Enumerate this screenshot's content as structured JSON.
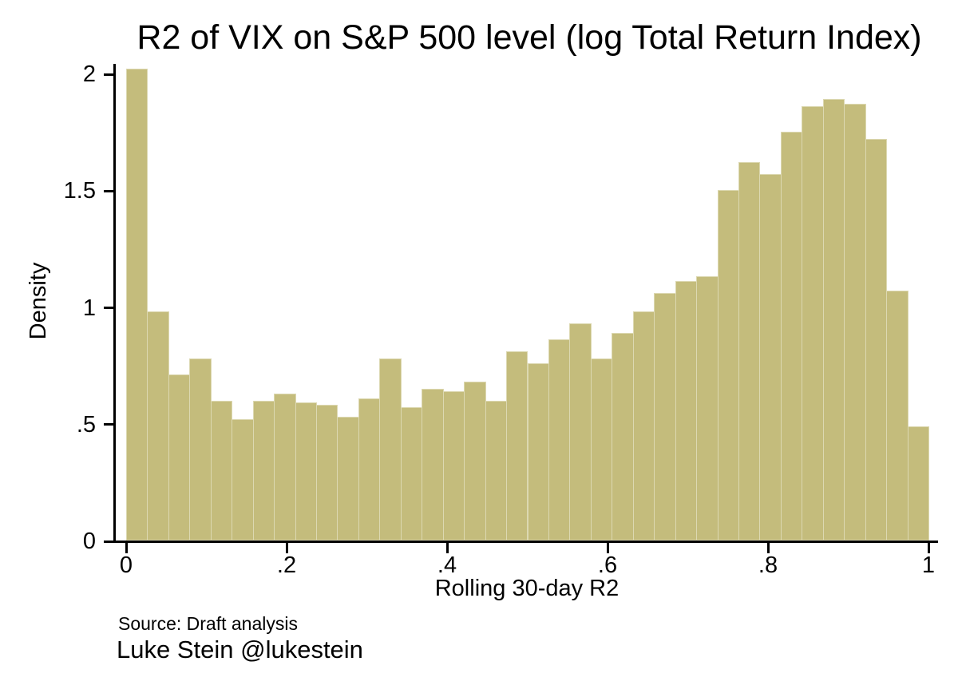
{
  "title": "R2 of VIX on S&P 500 level (log Total Return Index)",
  "notes": {
    "source": "Source: Draft analysis",
    "author": "Luke Stein @lukestein"
  },
  "chart_data": {
    "type": "bar",
    "subtype": "histogram",
    "title": "R2 of VIX on S&P 500 level (log Total Return Index)",
    "xlabel": "Rolling 30-day R2",
    "ylabel": "Density",
    "xlim": [
      0,
      1
    ],
    "ylim": [
      0,
      2.05
    ],
    "grid": false,
    "legend": "none",
    "bin_start": 0,
    "bin_width": 0.0263,
    "values": [
      2.02,
      0.98,
      0.71,
      0.78,
      0.6,
      0.52,
      0.6,
      0.63,
      0.59,
      0.58,
      0.53,
      0.61,
      0.78,
      0.57,
      0.65,
      0.64,
      0.68,
      0.6,
      0.81,
      0.76,
      0.86,
      0.93,
      0.78,
      0.89,
      0.98,
      1.06,
      1.11,
      1.13,
      1.5,
      1.62,
      1.57,
      1.75,
      1.86,
      1.89,
      1.87,
      1.72,
      1.07,
      0.49
    ],
    "x_ticks": [
      {
        "value": 0,
        "label": "0"
      },
      {
        "value": 0.2,
        "label": ".2"
      },
      {
        "value": 0.4,
        "label": ".4"
      },
      {
        "value": 0.6,
        "label": ".6"
      },
      {
        "value": 0.8,
        "label": ".8"
      },
      {
        "value": 1,
        "label": "1"
      }
    ],
    "y_ticks": [
      {
        "value": 0,
        "label": "0"
      },
      {
        "value": 0.5,
        "label": ".5"
      },
      {
        "value": 1,
        "label": "1"
      },
      {
        "value": 1.5,
        "label": "1.5"
      },
      {
        "value": 2,
        "label": "2"
      }
    ],
    "bar_color": "#c4bc7c",
    "bar_edge_color": "#dcd8b1",
    "axis_color": "#000000",
    "background_color": "#ffffff"
  }
}
